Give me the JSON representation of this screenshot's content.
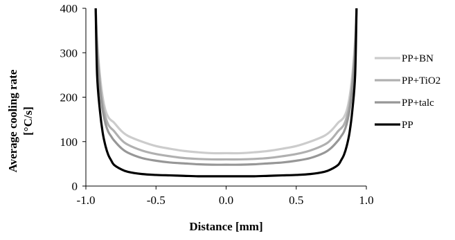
{
  "chart_data": {
    "type": "line",
    "title": "",
    "xlabel": "Distance [mm]",
    "ylabel_lines": [
      "Average cooling rate",
      "[°C/s]"
    ],
    "xlim": [
      -1.0,
      1.0
    ],
    "ylim": [
      0,
      400
    ],
    "xticks": [
      "-1.0",
      "-0.5",
      "0.0",
      "0.5",
      "1.0"
    ],
    "yticks": [
      "0",
      "100",
      "200",
      "300",
      "400"
    ],
    "grid": false,
    "legend_position": "right",
    "x": [
      -0.93,
      -0.92,
      -0.9,
      -0.88,
      -0.86,
      -0.84,
      -0.82,
      -0.8,
      -0.75,
      -0.7,
      -0.6,
      -0.5,
      -0.4,
      -0.3,
      -0.2,
      -0.1,
      0.0,
      0.1,
      0.2,
      0.3,
      0.4,
      0.5,
      0.6,
      0.7,
      0.75,
      0.8,
      0.82,
      0.84,
      0.86,
      0.88,
      0.9,
      0.92,
      0.93
    ],
    "series": [
      {
        "name": "PP+BN",
        "color": "#cccccc",
        "values": [
          400,
          330,
          250,
          200,
          170,
          155,
          148,
          143,
          125,
          113,
          100,
          90,
          84,
          79,
          76,
          74,
          74,
          74,
          76,
          79,
          84,
          90,
          100,
          113,
          125,
          143,
          148,
          155,
          170,
          200,
          250,
          330,
          400
        ]
      },
      {
        "name": "PP+TiO2",
        "color": "#b0b0b0",
        "values": [
          400,
          320,
          235,
          185,
          155,
          138,
          130,
          124,
          105,
          93,
          80,
          72,
          67,
          63,
          61,
          60,
          60,
          60,
          61,
          63,
          67,
          72,
          80,
          93,
          105,
          124,
          130,
          138,
          155,
          185,
          235,
          320,
          400
        ]
      },
      {
        "name": "PP+talc",
        "color": "#979797",
        "values": [
          400,
          310,
          220,
          170,
          140,
          122,
          112,
          103,
          86,
          75,
          63,
          57,
          53,
          51,
          49,
          48,
          48,
          48,
          49,
          51,
          53,
          57,
          63,
          75,
          86,
          103,
          112,
          122,
          140,
          170,
          220,
          310,
          400
        ]
      },
      {
        "name": "PP",
        "color": "#000000",
        "values": [
          400,
          250,
          170,
          120,
          90,
          70,
          58,
          48,
          38,
          32,
          27,
          25,
          24,
          23,
          22,
          22,
          22,
          22,
          22,
          23,
          24,
          25,
          27,
          32,
          38,
          48,
          58,
          70,
          90,
          120,
          170,
          250,
          400
        ]
      }
    ]
  }
}
